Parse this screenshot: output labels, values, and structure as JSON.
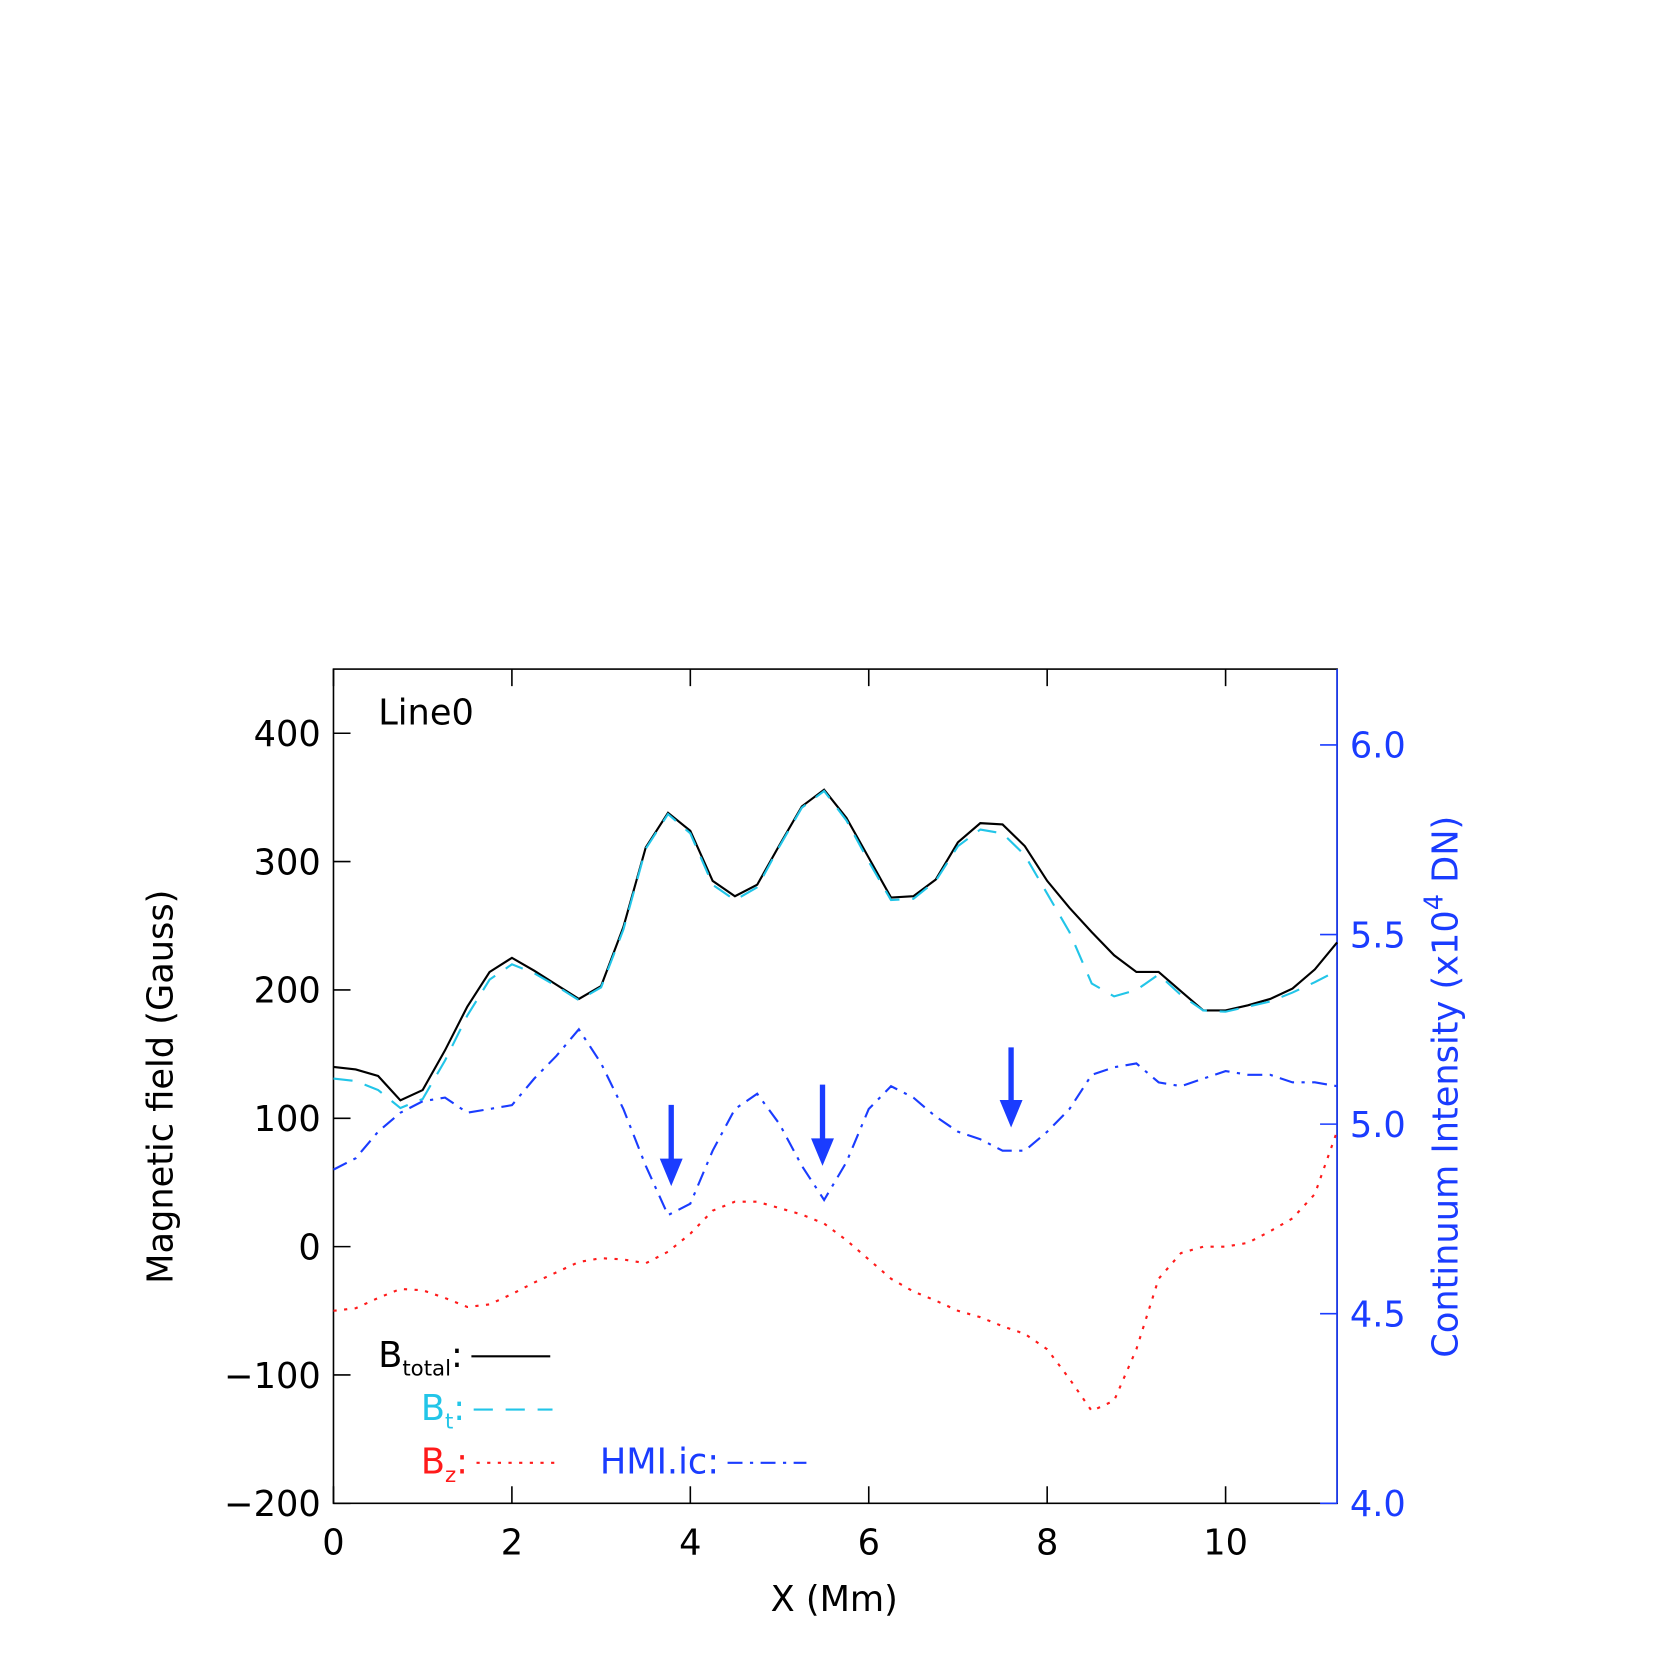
{
  "chart_data": {
    "type": "line",
    "annotation": "Line0",
    "xlabel": "X (Mm)",
    "ylabel": "Magnetic field (Gauss)",
    "y2label": {
      "text": "Continuum Intensity (x10",
      "superscript": "4",
      "suffix": " DN)"
    },
    "legend_separator": ":",
    "xlim": [
      0,
      11.25
    ],
    "xticks": [
      0,
      2,
      4,
      6,
      8,
      10
    ],
    "ylim": [
      -200,
      450
    ],
    "yticks": [
      {
        "value": -200,
        "label": "−200"
      },
      {
        "value": -100,
        "label": "−100"
      },
      0,
      100,
      200,
      300,
      400
    ],
    "y2lim": [
      4.0,
      6.2
    ],
    "y2ticks": [
      {
        "value": 4.0,
        "label": "4.0"
      },
      {
        "value": 4.5,
        "label": "4.5"
      },
      {
        "value": 5.0,
        "label": "5.0"
      },
      {
        "value": 5.5,
        "label": "5.5"
      },
      {
        "value": 6.0,
        "label": "6.0"
      }
    ],
    "x": [
      0,
      0.25,
      0.5,
      0.75,
      1.0,
      1.25,
      1.5,
      1.75,
      2.0,
      2.25,
      2.5,
      2.75,
      3.0,
      3.25,
      3.5,
      3.75,
      4.0,
      4.25,
      4.5,
      4.75,
      5.0,
      5.25,
      5.5,
      5.75,
      6.0,
      6.25,
      6.5,
      6.75,
      7.0,
      7.25,
      7.5,
      7.75,
      8.0,
      8.25,
      8.5,
      8.75,
      9.0,
      9.25,
      9.5,
      9.75,
      10.0,
      10.25,
      10.5,
      10.75,
      11.0,
      11.25
    ],
    "series": [
      {
        "name": "B",
        "subscript": "total",
        "color": "#000000",
        "dash": "solid",
        "values": [
          140,
          138,
          133,
          114,
          122,
          153,
          187,
          214,
          225,
          215,
          204,
          193,
          203,
          249,
          311,
          338,
          324,
          285,
          273,
          282,
          313,
          343,
          356,
          334,
          303,
          272,
          273,
          286,
          315,
          330,
          329,
          312,
          285,
          264,
          245,
          227,
          214,
          214,
          199,
          184,
          184,
          188,
          193,
          201,
          216,
          237
        ]
      },
      {
        "name": "B",
        "subscript": "t",
        "color": "#22c5e8",
        "dash": "dashed",
        "values": [
          131,
          129,
          122,
          108,
          115,
          145,
          180,
          208,
          220,
          213,
          203,
          192,
          202,
          247,
          310,
          337,
          322,
          282,
          270,
          280,
          312,
          342,
          355,
          332,
          300,
          270,
          271,
          285,
          312,
          325,
          322,
          305,
          275,
          245,
          205,
          195,
          200,
          212,
          196,
          184,
          183,
          187,
          191,
          198,
          206,
          215
        ]
      },
      {
        "name": "B",
        "subscript": "z",
        "color": "#ff1a1a",
        "dash": "dotted",
        "values": [
          -50,
          -48,
          -40,
          -33,
          -34,
          -40,
          -47,
          -45,
          -37,
          -28,
          -20,
          -12,
          -9,
          -10,
          -13,
          -4,
          10,
          28,
          35,
          35,
          30,
          25,
          18,
          5,
          -10,
          -25,
          -35,
          -42,
          -50,
          -55,
          -62,
          -68,
          -80,
          -103,
          -128,
          -120,
          -80,
          -25,
          -5,
          0,
          0,
          3,
          12,
          22,
          41,
          90
        ]
      },
      {
        "name": "HMI.ic",
        "color": "#1a3cff",
        "dash": "dashdot",
        "axis": "y2",
        "values": [
          4.88,
          4.91,
          4.98,
          5.03,
          5.06,
          5.07,
          5.03,
          5.04,
          5.05,
          5.12,
          5.18,
          5.25,
          5.16,
          5.04,
          4.89,
          4.76,
          4.79,
          4.93,
          5.04,
          5.08,
          5.0,
          4.89,
          4.8,
          4.9,
          5.04,
          5.1,
          5.07,
          5.02,
          4.98,
          4.96,
          4.93,
          4.93,
          4.98,
          5.04,
          5.13,
          5.15,
          5.16,
          5.11,
          5.1,
          5.12,
          5.14,
          5.13,
          5.13,
          5.11,
          5.11,
          5.1
        ]
      }
    ]
  }
}
